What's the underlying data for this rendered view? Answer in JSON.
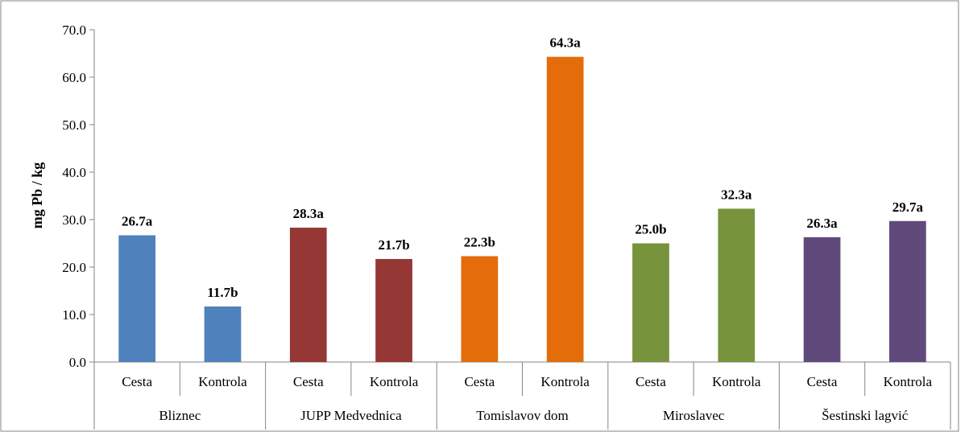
{
  "chart_data": {
    "type": "bar",
    "title": "",
    "xlabel": "",
    "ylabel": "mg Pb / kg",
    "ylim": [
      0,
      70
    ],
    "yticks": [
      "0.0",
      "10.0",
      "20.0",
      "30.0",
      "40.0",
      "50.0",
      "60.0",
      "70.0"
    ],
    "grid": false,
    "groups": [
      {
        "name": "Bliznec",
        "color": "#4F81BD",
        "bars": [
          {
            "category": "Cesta",
            "value": 26.7,
            "label": "26.7a"
          },
          {
            "category": "Kontrola",
            "value": 11.7,
            "label": "11.7b"
          }
        ]
      },
      {
        "name": "JUPP Medvednica",
        "color": "#953735",
        "bars": [
          {
            "category": "Cesta",
            "value": 28.3,
            "label": "28.3a"
          },
          {
            "category": "Kontrola",
            "value": 21.7,
            "label": "21.7b"
          }
        ]
      },
      {
        "name": "Tomislavov dom",
        "color": "#E46C0A",
        "bars": [
          {
            "category": "Cesta",
            "value": 22.3,
            "label": "22.3b"
          },
          {
            "category": "Kontrola",
            "value": 64.3,
            "label": "64.3a"
          }
        ]
      },
      {
        "name": "Miroslavec",
        "color": "#77933C",
        "bars": [
          {
            "category": "Cesta",
            "value": 25.0,
            "label": "25.0b"
          },
          {
            "category": "Kontrola",
            "value": 32.3,
            "label": "32.3a"
          }
        ]
      },
      {
        "name": "Šestinski lagvić",
        "color": "#604A7B",
        "bars": [
          {
            "category": "Cesta",
            "value": 26.3,
            "label": "26.3a"
          },
          {
            "category": "Kontrola",
            "value": 29.7,
            "label": "29.7a"
          }
        ]
      }
    ]
  }
}
